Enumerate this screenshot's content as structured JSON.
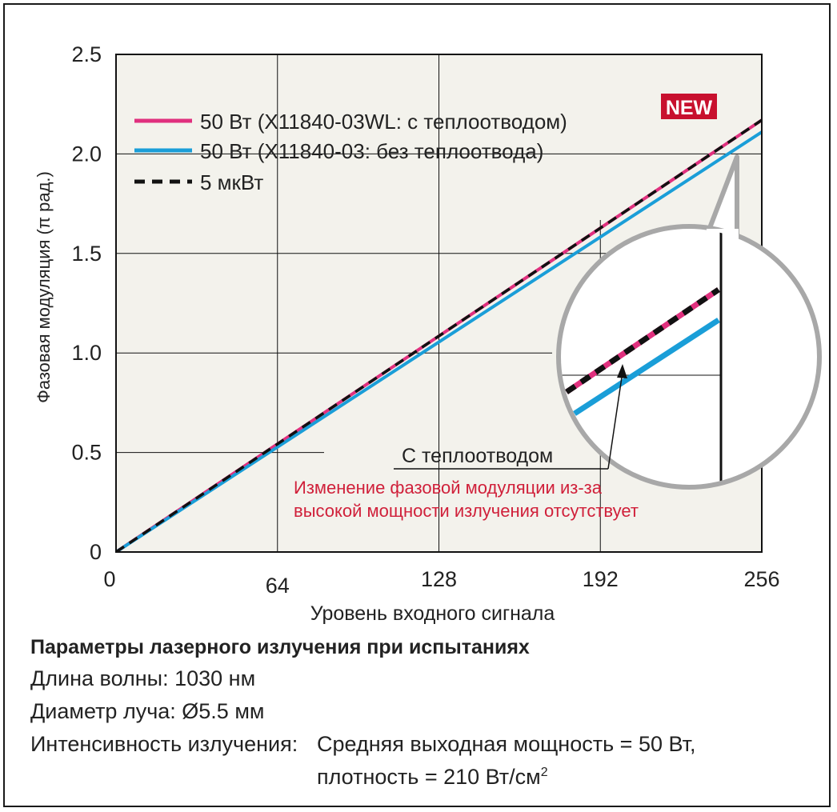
{
  "chart_data": {
    "type": "line",
    "title": "",
    "xlabel": "Уровень входного сигнала",
    "ylabel": "Фазовая модуляция (π рад.)",
    "xlim": [
      0,
      256
    ],
    "ylim": [
      0,
      2.5
    ],
    "x_ticks": [
      "0",
      "64",
      "128",
      "192",
      "256"
    ],
    "x_tick_values": [
      0,
      64,
      128,
      192,
      256
    ],
    "y_ticks": [
      "0",
      "0.5",
      "1.0",
      "1.5",
      "2.0",
      "2.5"
    ],
    "y_tick_values": [
      0,
      0.5,
      1.0,
      1.5,
      2.0,
      2.5
    ],
    "grid": true,
    "legend_position": "top-left",
    "series": [
      {
        "name": "50 Вт (X11840-03WL: с теплоотводом)",
        "color": "#e0307e",
        "style": "solid",
        "x": [
          0,
          256
        ],
        "y": [
          0,
          2.17
        ]
      },
      {
        "name": "50 Вт (X11840-03: без теплоотвода)",
        "color": "#1a9ed8",
        "style": "solid",
        "x": [
          0,
          256
        ],
        "y": [
          0,
          2.11
        ]
      },
      {
        "name": "5 мкВт",
        "color": "#111111",
        "style": "dashed",
        "x": [
          0,
          256
        ],
        "y": [
          0,
          2.17
        ]
      }
    ],
    "badge": {
      "text": "NEW",
      "color": "#c8102e"
    },
    "annotations": {
      "label": "С теплоотводом",
      "note_line1": "Изменение фазовой модуляции из-за",
      "note_line2": "высокой мощности излучения отсутствует",
      "note_color": "#d0203a"
    }
  },
  "params": {
    "title": "Параметры лазерного излучения при испытаниях",
    "wavelength": "Длина волны: 1030 нм",
    "diameter": "Диаметр луча: Ø5.5 мм",
    "intensity_label": "Интенсивность излучения:",
    "intensity_value": "Средняя выходная мощность = 50 Вт,",
    "density": "плотность = 210 Вт/см",
    "density_sup": "2"
  }
}
